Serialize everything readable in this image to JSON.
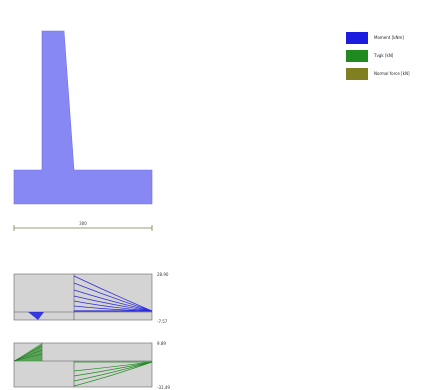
{
  "colors": {
    "section": "#8888f5",
    "moment": "#1c1ce0",
    "shear": "#1f8a1f",
    "normal": "#808020",
    "panel_bg": "#d4d4d4",
    "panel_border": "#666666",
    "dimension": "#7a7a4a"
  },
  "legend": [
    {
      "label": "Moment [kNm]",
      "color": "#1c1ce0"
    },
    {
      "label": "Tvgk [kN]",
      "color": "#1f8a1f"
    },
    {
      "label": "Normal force [kN]",
      "color": "#808020"
    }
  ],
  "dimension": {
    "label": "300"
  },
  "moment_panel": {
    "max_label": "28.90",
    "min_label": "-7.57"
  },
  "shear_panel": {
    "max_label": "9.89",
    "min_label": "-31.49"
  }
}
